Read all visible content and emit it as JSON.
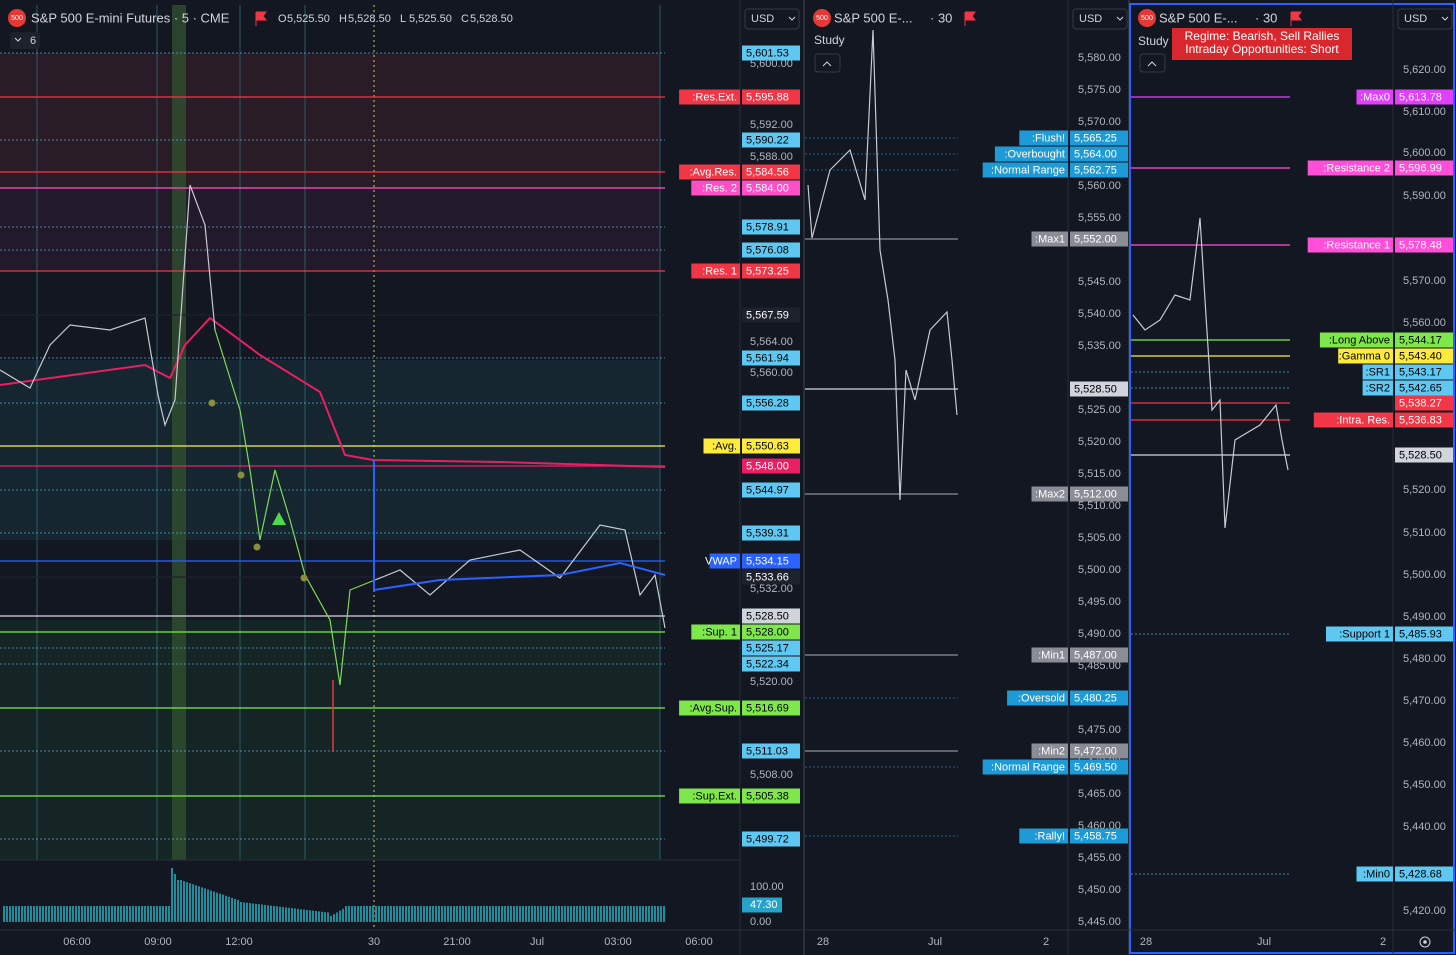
{
  "panels": [
    {
      "header": {
        "icon": "500",
        "title": "S&P 500 E-mini Futures · 5 · CME",
        "ohlc": [
          {
            "key": "O",
            "value": "5,525.50"
          },
          {
            "key": "H",
            "value": "5,528.50"
          },
          {
            "key": "L",
            "value": "5,525.50"
          },
          {
            "key": "C",
            "value": "5,528.50"
          }
        ],
        "indicators": "6"
      },
      "currency": "USD",
      "axis_labels": [
        "5,600.00",
        "5,592.00",
        "5,588.00",
        "5,564.00",
        "5,560.00",
        "5,532.00",
        "5,520.00",
        "5,508.00"
      ],
      "tags": [
        {
          "value": "5,601.53",
          "color": "#5ec8f2"
        },
        {
          "label": ":Res.Ext.",
          "value": "5,595.88",
          "color": "#f23645"
        },
        {
          "value": "5,590.22",
          "color": "#5ec8f2"
        },
        {
          "label": ":Avg.Res.",
          "value": "5,584.56",
          "color": "#f23645"
        },
        {
          "label": ":Res. 2",
          "value": "5,584.00",
          "color": "#ff4fc6"
        },
        {
          "value": "5,578.91",
          "color": "#5ec8f2"
        },
        {
          "value": "5,576.08",
          "color": "#5ec8f2"
        },
        {
          "label": ":Res. 1",
          "value": "5,573.25",
          "color": "#f23645"
        },
        {
          "value": "5,567.59",
          "color": "#1e222d"
        },
        {
          "value": "5,561.94",
          "color": "#5ec8f2"
        },
        {
          "value": "5,556.28",
          "color": "#5ec8f2"
        },
        {
          "label": ":Avg.",
          "value": "5,550.63",
          "color": "#ffeb3b"
        },
        {
          "value": "5,548.00",
          "color": "#e91e63"
        },
        {
          "value": "5,544.97",
          "color": "#5ec8f2"
        },
        {
          "value": "5,539.31",
          "color": "#5ec8f2"
        },
        {
          "label": "VWAP",
          "value": "5,534.15",
          "color": "#2962ff"
        },
        {
          "value": "5,533.66",
          "color": "#1e222d"
        },
        {
          "value": "5,528.50",
          "color": "#d1d4dc"
        },
        {
          "label": ":Sup. 1",
          "value": "5,528.00",
          "color": "#7ee84a"
        },
        {
          "value": "5,525.17",
          "color": "#5ec8f2"
        },
        {
          "value": "5,522.34",
          "color": "#5ec8f2"
        },
        {
          "label": ":Avg.Sup.",
          "value": "5,516.69",
          "color": "#7ee84a"
        },
        {
          "value": "5,511.03",
          "color": "#5ec8f2"
        },
        {
          "label": ":Sup.Ext.",
          "value": "5,505.38",
          "color": "#7ee84a"
        },
        {
          "value": "5,499.72",
          "color": "#5ec8f2"
        }
      ],
      "volume_axis": [
        "100.00",
        "47.30",
        "0.00"
      ],
      "time_labels": [
        "06:00",
        "09:00",
        "12:00",
        "30",
        "21:00",
        "Jul",
        "03:00",
        "06:00"
      ]
    },
    {
      "header": {
        "icon": "500",
        "title": "S&P 500 E-...",
        "interval": "· 30",
        "study": "Study"
      },
      "currency": "USD",
      "axis_labels": [
        "5,580.00",
        "5,575.00",
        "5,570.00",
        "5,560.00",
        "5,555.00",
        "5,545.00",
        "5,540.00",
        "5,535.00",
        "5,525.00",
        "5,520.00",
        "5,515.00",
        "5,510.00",
        "5,505.00",
        "5,500.00",
        "5,495.00",
        "5,490.00",
        "5,485.00",
        "5,475.00",
        "5,470.00",
        "5,465.00",
        "5,460.00",
        "5,455.00",
        "5,450.00",
        "5,445.00"
      ],
      "tags": [
        {
          "label": ":Flush!",
          "value": "5,565.25",
          "color": "#1e9bd7"
        },
        {
          "label": ":Overbought",
          "value": "5,564.00",
          "color": "#1e9bd7"
        },
        {
          "label": ":Normal Range",
          "value": "5,562.75",
          "color": "#1e9bd7"
        },
        {
          "label": ":Max1",
          "value": "5,552.00",
          "color": "#8a8d96"
        },
        {
          "value": "5,528.50",
          "color": "#d1d4dc"
        },
        {
          "label": ":Max2",
          "value": "5,512.00",
          "color": "#8a8d96"
        },
        {
          "label": ":Min1",
          "value": "5,487.00",
          "color": "#8a8d96"
        },
        {
          "label": ":Oversold",
          "value": "5,480.25",
          "color": "#1e9bd7"
        },
        {
          "label": ":Min2",
          "value": "5,472.00",
          "color": "#8a8d96"
        },
        {
          "label": ":Normal Range",
          "value": "5,469.50",
          "color": "#1e9bd7"
        },
        {
          "label": ":Rally!",
          "value": "5,458.75",
          "color": "#1e9bd7"
        }
      ],
      "time_labels": [
        "28",
        "Jul",
        "2"
      ]
    },
    {
      "header": {
        "icon": "500",
        "title": "S&P 500 E-...",
        "interval": "· 30",
        "study": "Study"
      },
      "banner": [
        "Regime: Bearish, Sell Rallies",
        "Intraday Opportunities: Short"
      ],
      "currency": "USD",
      "axis_labels": [
        "5,620.00",
        "5,610.00",
        "5,600.00",
        "5,590.00",
        "5,570.00",
        "5,560.00",
        "5,520.00",
        "5,510.00",
        "5,500.00",
        "5,490.00",
        "5,480.00",
        "5,470.00",
        "5,460.00",
        "5,450.00",
        "5,440.00",
        "5,420.00"
      ],
      "tags": [
        {
          "label": ":Max0",
          "value": "5,613.78",
          "color": "#e040fb"
        },
        {
          "label": ":Resistance 2",
          "value": "5,596.99",
          "color": "#ff4fd8"
        },
        {
          "label": ":Resistance 1",
          "value": "5,578.48",
          "color": "#ff4fd8"
        },
        {
          "label": ":Long Above",
          "value": "5,544.17",
          "color": "#7ee84a"
        },
        {
          "label": ":Gamma 0",
          "value": "5,543.40",
          "color": "#ffeb3b"
        },
        {
          "label": ":SR1",
          "value": "5,543.17",
          "color": "#5ec8f2"
        },
        {
          "label": ":SR2",
          "value": "5,542.65",
          "color": "#5ec8f2"
        },
        {
          "value": "5,538.27",
          "color": "#f23645"
        },
        {
          "label": ":Intra. Res.",
          "value": "5,536.83",
          "color": "#f23645"
        },
        {
          "value": "5,528.50",
          "color": "#d1d4dc"
        },
        {
          "label": ":Support 1",
          "value": "5,485.93",
          "color": "#5ec8f2"
        },
        {
          "label": ":Min0",
          "value": "5,428.68",
          "color": "#5ec8f2"
        }
      ],
      "time_labels": [
        "28",
        "Jul",
        "2"
      ]
    }
  ]
}
